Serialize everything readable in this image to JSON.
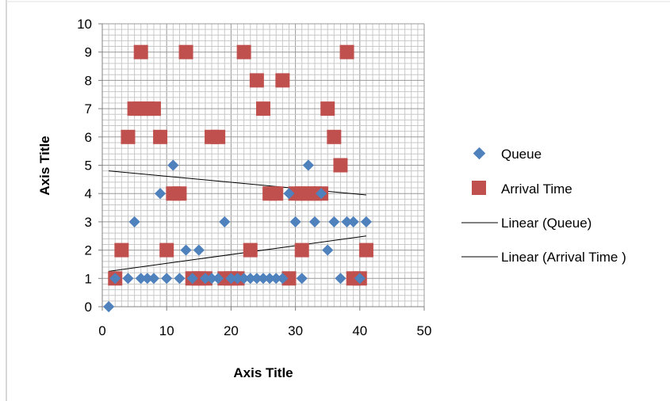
{
  "chart_data": {
    "type": "scatter",
    "title": "",
    "xlabel": "Axis Title",
    "ylabel": "Axis Title",
    "xlim": [
      0,
      50
    ],
    "ylim": [
      0,
      10
    ],
    "x_ticks": [
      0,
      10,
      20,
      30,
      40,
      50
    ],
    "y_ticks": [
      0,
      1,
      2,
      3,
      4,
      5,
      6,
      7,
      8,
      9,
      10
    ],
    "grid": true,
    "legend_position": "right",
    "series": [
      {
        "name": "Queue",
        "marker": "diamond",
        "color": "#4F81BD",
        "points": [
          [
            1,
            0
          ],
          [
            2,
            1
          ],
          [
            4,
            1
          ],
          [
            5,
            3
          ],
          [
            6,
            1
          ],
          [
            7,
            1
          ],
          [
            8,
            1
          ],
          [
            9,
            4
          ],
          [
            10,
            1
          ],
          [
            11,
            5
          ],
          [
            12,
            1
          ],
          [
            13,
            2
          ],
          [
            14,
            1
          ],
          [
            15,
            2
          ],
          [
            16,
            1
          ],
          [
            17,
            1
          ],
          [
            18,
            1
          ],
          [
            19,
            3
          ],
          [
            20,
            1
          ],
          [
            21,
            1
          ],
          [
            22,
            1
          ],
          [
            23,
            1
          ],
          [
            24,
            1
          ],
          [
            25,
            1
          ],
          [
            26,
            1
          ],
          [
            27,
            1
          ],
          [
            28,
            1
          ],
          [
            29,
            4
          ],
          [
            30,
            3
          ],
          [
            31,
            1
          ],
          [
            32,
            5
          ],
          [
            33,
            3
          ],
          [
            34,
            4
          ],
          [
            35,
            2
          ],
          [
            36,
            3
          ],
          [
            37,
            1
          ],
          [
            38,
            3
          ],
          [
            39,
            3
          ],
          [
            40,
            1
          ],
          [
            41,
            3
          ]
        ]
      },
      {
        "name": "Arrival Time",
        "marker": "square",
        "color": "#C0504D",
        "points": [
          [
            2,
            1
          ],
          [
            3,
            2
          ],
          [
            4,
            6
          ],
          [
            5,
            7
          ],
          [
            6,
            9
          ],
          [
            6,
            7
          ],
          [
            7,
            7
          ],
          [
            8,
            7
          ],
          [
            9,
            6
          ],
          [
            10,
            2
          ],
          [
            11,
            4
          ],
          [
            12,
            4
          ],
          [
            13,
            9
          ],
          [
            14,
            1
          ],
          [
            15,
            1
          ],
          [
            16,
            1
          ],
          [
            17,
            6
          ],
          [
            18,
            6
          ],
          [
            19,
            1
          ],
          [
            20,
            1
          ],
          [
            21,
            1
          ],
          [
            22,
            9
          ],
          [
            23,
            2
          ],
          [
            24,
            8
          ],
          [
            25,
            7
          ],
          [
            26,
            4
          ],
          [
            27,
            4
          ],
          [
            28,
            8
          ],
          [
            29,
            1
          ],
          [
            30,
            4
          ],
          [
            31,
            2
          ],
          [
            31,
            4
          ],
          [
            32,
            4
          ],
          [
            33,
            4
          ],
          [
            34,
            4
          ],
          [
            35,
            7
          ],
          [
            36,
            6
          ],
          [
            37,
            5
          ],
          [
            38,
            9
          ],
          [
            39,
            1
          ],
          [
            40,
            1
          ],
          [
            41,
            2
          ]
        ]
      }
    ],
    "trendlines": [
      {
        "name": "Linear (Queue)",
        "color": "#000000",
        "x_range": [
          1,
          41
        ],
        "y_start": 1.25,
        "y_end": 2.5
      },
      {
        "name": "Linear (Arrival Time )",
        "color": "#000000",
        "x_range": [
          1,
          41
        ],
        "y_start": 4.8,
        "y_end": 3.95
      }
    ]
  }
}
